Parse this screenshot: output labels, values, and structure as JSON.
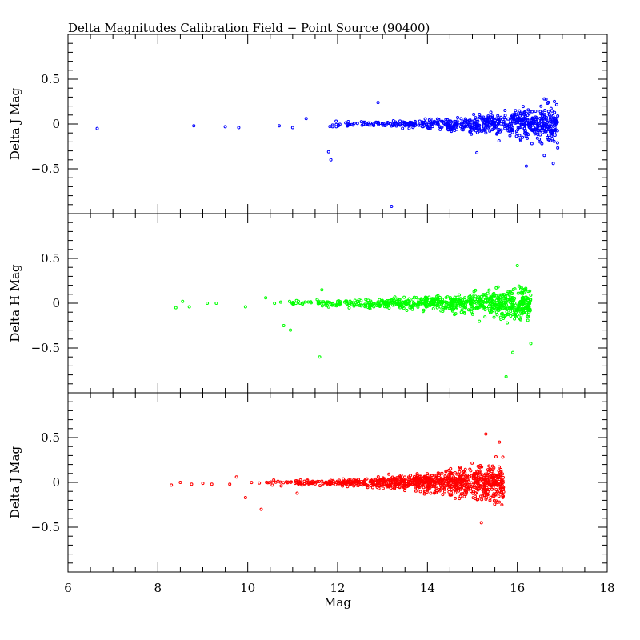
{
  "chart_data": {
    "type": "scatter",
    "title": "Delta Magnitudes Calibration Field − Point Source (90400)",
    "xlabel": "Mag",
    "xlim": [
      6,
      18
    ],
    "x_ticks": [
      "6",
      "8",
      "10",
      "12",
      "14",
      "16",
      "18"
    ],
    "y_ticks": [
      "0.5",
      "0",
      "−0.5"
    ],
    "grid": false,
    "panels": [
      {
        "ylabel": "Delta J Mag",
        "color": "#0000ff",
        "ylim": [
          -1.0,
          1.0
        ],
        "outliers": [
          [
            6.65,
            -0.05
          ],
          [
            8.8,
            -0.02
          ],
          [
            9.5,
            -0.03
          ],
          [
            9.8,
            -0.04
          ],
          [
            10.7,
            -0.02
          ],
          [
            11.0,
            -0.04
          ],
          [
            11.3,
            0.06
          ],
          [
            11.8,
            -0.31
          ],
          [
            11.85,
            -0.4
          ],
          [
            12.9,
            0.24
          ],
          [
            13.2,
            -0.92
          ],
          [
            15.1,
            -0.32
          ],
          [
            15.3,
            -0.1
          ],
          [
            16.2,
            -0.47
          ],
          [
            16.6,
            0.28
          ],
          [
            16.6,
            -0.35
          ],
          [
            16.8,
            -0.44
          ]
        ],
        "core": {
          "x_from": 11.5,
          "x_to": 16.9,
          "spread_start": 0.03,
          "spread_end": 0.2,
          "count": 650
        }
      },
      {
        "ylabel": "Delta H Mag",
        "color": "#00ff00",
        "ylim": [
          -1.0,
          1.0
        ],
        "outliers": [
          [
            8.4,
            -0.05
          ],
          [
            8.55,
            0.02
          ],
          [
            8.7,
            -0.04
          ],
          [
            9.1,
            0.0
          ],
          [
            9.3,
            0.0
          ],
          [
            9.95,
            -0.04
          ],
          [
            10.4,
            0.06
          ],
          [
            10.8,
            -0.25
          ],
          [
            10.95,
            -0.3
          ],
          [
            11.6,
            -0.6
          ],
          [
            11.65,
            0.15
          ],
          [
            15.75,
            -0.82
          ],
          [
            15.9,
            -0.55
          ],
          [
            16.0,
            0.42
          ],
          [
            16.3,
            -0.45
          ]
        ],
        "core": {
          "x_from": 10.5,
          "x_to": 16.3,
          "spread_start": 0.03,
          "spread_end": 0.18,
          "count": 750
        }
      },
      {
        "ylabel": "Delta J Mag",
        "color": "#ff0000",
        "ylim": [
          -1.0,
          1.0
        ],
        "outliers": [
          [
            8.3,
            -0.03
          ],
          [
            8.5,
            0.0
          ],
          [
            8.75,
            -0.02
          ],
          [
            9.0,
            -0.01
          ],
          [
            9.2,
            -0.02
          ],
          [
            9.75,
            0.06
          ],
          [
            9.6,
            -0.02
          ],
          [
            9.95,
            -0.17
          ],
          [
            10.3,
            -0.3
          ],
          [
            11.1,
            -0.12
          ],
          [
            15.3,
            0.54
          ],
          [
            15.2,
            -0.45
          ],
          [
            15.6,
            0.45
          ]
        ],
        "core": {
          "x_from": 10.0,
          "x_to": 15.7,
          "spread_start": 0.025,
          "spread_end": 0.2,
          "count": 900
        }
      }
    ]
  }
}
